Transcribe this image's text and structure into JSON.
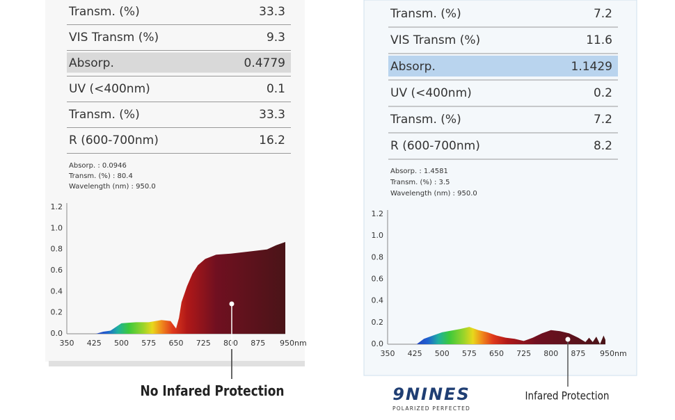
{
  "panels": [
    {
      "rows": [
        [
          "Transm. (%)",
          "33.3"
        ],
        [
          "VIS Transm  (%)",
          "9.3"
        ],
        [
          "Absorp.",
          "0.4779"
        ],
        [
          "UV (<400nm)",
          "0.1"
        ],
        [
          "Transm. (%)",
          "33.3"
        ],
        [
          "R (600-700nm)",
          "16.2"
        ]
      ],
      "readout": [
        "Absorp. : 0.0946",
        "Transm. (%) : 80.4",
        "Wavelength (nm) : 950.0"
      ],
      "caption": "No Infared Protection"
    },
    {
      "rows": [
        [
          "Transm. (%)",
          "7.2"
        ],
        [
          "VIS Transm  (%)",
          "11.6"
        ],
        [
          "Absorp.",
          "1.1429"
        ],
        [
          "UV (<400nm)",
          "0.2"
        ],
        [
          "Transm. (%)",
          "7.2"
        ],
        [
          "R (600-700nm)",
          "8.2"
        ]
      ],
      "readout": [
        "Absorp. : 1.4581",
        "Transm. (%) : 3.5",
        "Wavelength (nm) : 950.0"
      ],
      "caption": "Infared Protection"
    }
  ],
  "brand": {
    "name": "9NINES",
    "tagline": "POLARIZED PERFECTED"
  },
  "chart_data": [
    {
      "type": "area",
      "x": [
        430,
        450,
        470,
        500,
        540,
        575,
        610,
        635,
        650,
        658,
        665,
        680,
        695,
        710,
        730,
        760,
        800,
        850,
        900,
        925,
        950
      ],
      "values": [
        0.0,
        0.02,
        0.03,
        0.1,
        0.11,
        0.11,
        0.13,
        0.12,
        0.05,
        0.15,
        0.3,
        0.45,
        0.57,
        0.65,
        0.71,
        0.75,
        0.76,
        0.78,
        0.8,
        0.84,
        0.87
      ],
      "xlim": [
        350,
        950
      ],
      "ylim": [
        0,
        1.2
      ],
      "xticks": [
        350,
        425,
        500,
        575,
        650,
        725,
        800,
        875,
        {
          "value": 950,
          "label": "950nm"
        }
      ],
      "yticks": [
        {
          "value": 0,
          "label": "0.0"
        },
        0.2,
        0.4,
        0.6,
        0.8,
        {
          "value": 1,
          "label": "1.0"
        },
        1.2
      ]
    },
    {
      "type": "area",
      "x": [
        430,
        450,
        475,
        500,
        550,
        575,
        600,
        625,
        650,
        675,
        700,
        725,
        750,
        775,
        800,
        825,
        850,
        875,
        895,
        905,
        915,
        925,
        935,
        945,
        950
      ],
      "values": [
        0.0,
        0.05,
        0.08,
        0.11,
        0.14,
        0.16,
        0.13,
        0.11,
        0.08,
        0.06,
        0.05,
        0.03,
        0.06,
        0.1,
        0.13,
        0.12,
        0.1,
        0.06,
        0.02,
        0.06,
        0.02,
        0.07,
        0.0,
        0.08,
        0.04
      ],
      "xlim": [
        350,
        950
      ],
      "ylim": [
        0,
        1.2
      ],
      "xticks": [
        350,
        425,
        500,
        575,
        650,
        725,
        800,
        875,
        {
          "value": 950,
          "label": "950nm"
        }
      ],
      "yticks": [
        {
          "value": 0,
          "label": "0.0"
        },
        0.2,
        0.4,
        0.6,
        0.8,
        {
          "value": 1,
          "label": "1.0"
        },
        1.2
      ]
    }
  ]
}
